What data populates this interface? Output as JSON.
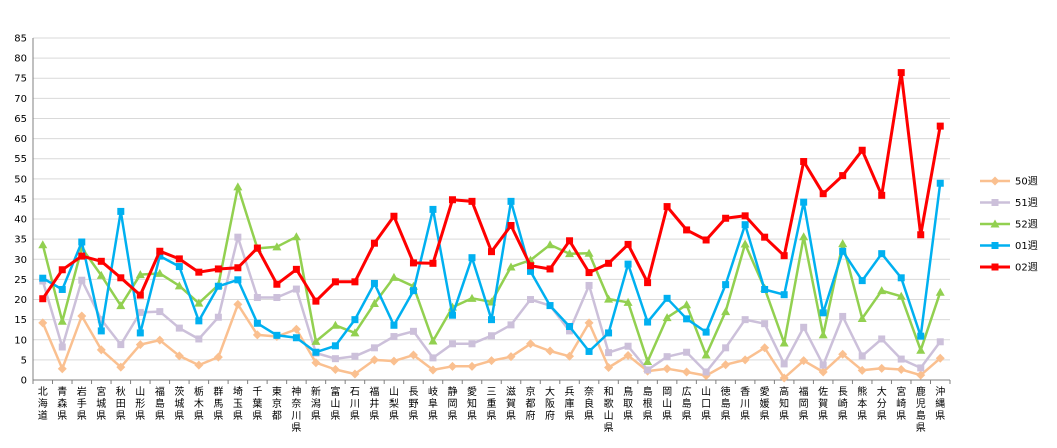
{
  "chart_data": {
    "type": "line",
    "ylim": [
      0,
      85
    ],
    "y_ticks": [
      0,
      5,
      10,
      15,
      20,
      25,
      30,
      35,
      40,
      45,
      50,
      55,
      60,
      65,
      70,
      75,
      80,
      85
    ],
    "grid": true,
    "legend_position": "right",
    "categories": [
      "北海道",
      "青森県",
      "岩手県",
      "宮城県",
      "秋田県",
      "山形県",
      "福島県",
      "茨城県",
      "栃木県",
      "群馬県",
      "埼玉県",
      "千葉県",
      "東京都",
      "神奈川県",
      "新潟県",
      "富山県",
      "石川県",
      "福井県",
      "山梨県",
      "長野県",
      "岐阜県",
      "静岡県",
      "愛知県",
      "三重県",
      "滋賀県",
      "京都府",
      "大阪府",
      "兵庫県",
      "奈良県",
      "和歌山県",
      "鳥取県",
      "島根県",
      "岡山県",
      "広島県",
      "山口県",
      "徳島県",
      "香川県",
      "愛媛県",
      "高知県",
      "福岡県",
      "佐賀県",
      "長崎県",
      "熊本県",
      "大分県",
      "宮崎県",
      "鹿児島県",
      "沖縄県"
    ],
    "series": [
      {
        "name": "50週",
        "color": "#FAC090",
        "marker": "diamond",
        "values": [
          14.2,
          2.8,
          15.9,
          7.5,
          3.2,
          8.8,
          9.9,
          6.0,
          3.7,
          5.7,
          18.8,
          11.2,
          10.8,
          12.6,
          4.3,
          2.6,
          1.5,
          5.0,
          4.7,
          6.2,
          2.5,
          3.4,
          3.4,
          4.8,
          5.8,
          9.0,
          7.2,
          5.9,
          14.2,
          3.1,
          6.1,
          2.2,
          2.8,
          2.0,
          1.1,
          3.8,
          5.0,
          8.0,
          0.5,
          4.8,
          2.0,
          6.4,
          2.4,
          2.9,
          2.6,
          1.2,
          5.4
        ]
      },
      {
        "name": "51週",
        "color": "#CCC0DA",
        "marker": "square",
        "values": [
          24.6,
          8.2,
          24.8,
          15.0,
          8.8,
          16.8,
          17.0,
          12.9,
          10.2,
          15.6,
          35.5,
          20.5,
          20.5,
          22.6,
          6.7,
          5.3,
          5.9,
          8.0,
          10.8,
          12.1,
          5.5,
          9.0,
          9.0,
          11.0,
          13.7,
          20.0,
          18.5,
          12.2,
          23.5,
          6.8,
          8.4,
          2.5,
          5.8,
          6.9,
          2.0,
          8.0,
          15.0,
          14.0,
          4.0,
          13.1,
          3.7,
          15.8,
          6.0,
          10.2,
          5.2,
          3.0,
          9.5
        ]
      },
      {
        "name": "52週",
        "color": "#92D050",
        "marker": "triangle",
        "values": [
          33.6,
          14.6,
          32.8,
          26.0,
          18.5,
          26.2,
          26.5,
          23.4,
          19.1,
          23.6,
          48.0,
          32.7,
          33.1,
          35.6,
          9.6,
          13.6,
          11.7,
          19.0,
          25.5,
          23.3,
          9.7,
          18.1,
          20.3,
          19.4,
          28.1,
          29.8,
          33.6,
          31.4,
          31.5,
          20.1,
          19.3,
          4.6,
          15.5,
          18.7,
          6.2,
          17.0,
          33.8,
          22.8,
          9.2,
          35.6,
          11.2,
          33.9,
          15.3,
          22.2,
          20.8,
          7.4,
          21.8
        ]
      },
      {
        "name": "01週",
        "color": "#00B0F0",
        "marker": "square",
        "values": [
          25.3,
          22.5,
          34.3,
          12.2,
          41.9,
          11.7,
          30.8,
          28.2,
          14.7,
          23.3,
          24.9,
          14.1,
          11.1,
          10.5,
          6.9,
          8.5,
          15.0,
          24.0,
          13.6,
          22.2,
          42.4,
          16.1,
          30.4,
          15.0,
          44.4,
          27.0,
          18.5,
          13.3,
          7.1,
          11.7,
          28.8,
          14.4,
          20.3,
          15.2,
          11.9,
          23.7,
          38.6,
          22.5,
          21.2,
          44.2,
          16.7,
          32.0,
          24.7,
          31.4,
          25.4,
          10.9,
          48.9
        ]
      },
      {
        "name": "02週",
        "color": "#FF0000",
        "marker": "square",
        "values": [
          20.2,
          27.4,
          30.8,
          29.5,
          25.4,
          21.1,
          32.0,
          30.1,
          26.8,
          27.6,
          27.9,
          32.8,
          23.8,
          27.5,
          19.6,
          24.4,
          24.4,
          34.0,
          40.7,
          29.1,
          29.0,
          44.8,
          44.4,
          31.9,
          38.4,
          28.4,
          27.6,
          34.6,
          26.7,
          29.0,
          33.7,
          24.2,
          43.1,
          37.3,
          34.8,
          40.2,
          40.8,
          35.5,
          30.9,
          54.3,
          46.3,
          50.8,
          57.1,
          45.9,
          76.4,
          36.1,
          63.1
        ]
      }
    ]
  }
}
